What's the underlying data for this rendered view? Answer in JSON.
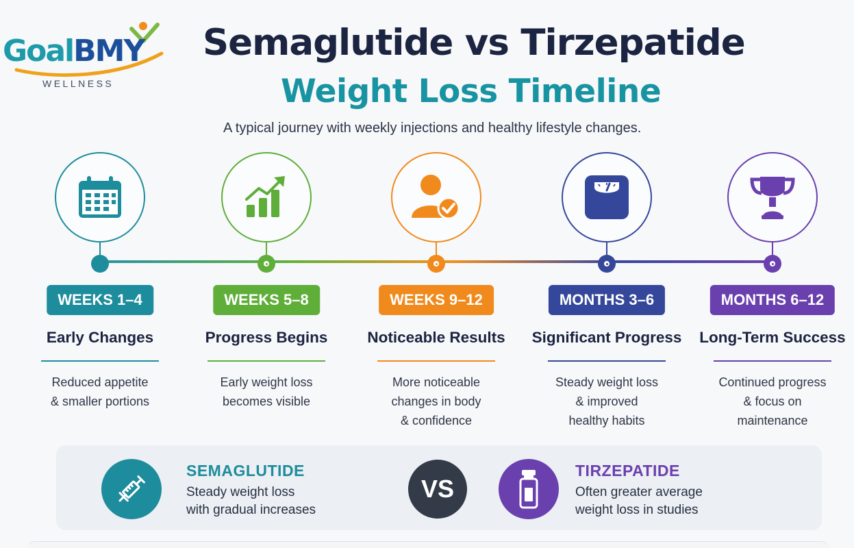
{
  "logo": {
    "word_goal": "Goal",
    "word_bmy": "BMY",
    "subtitle": "WELLNESS",
    "colors": {
      "goal": "#1e9bab",
      "bmy": "#1c4f9a",
      "swoosh": "#f0a11a",
      "figure": "#f28c1e"
    }
  },
  "header": {
    "title": "Semaglutide vs Tirzepatide",
    "subtitle": "Weight Loss Timeline",
    "tagline": "A typical journey with weekly injections and healthy lifestyle changes."
  },
  "timeline": [
    {
      "period": "WEEKS 1–4",
      "title": "Early Changes",
      "description": "Reduced appetite\n& smaller portions",
      "icon": "calendar-icon",
      "color": "#1d8c9c"
    },
    {
      "period": "WEEKS 5–8",
      "title": "Progress Begins",
      "description": "Early weight loss\nbecomes visible",
      "icon": "bar-chart-up-icon",
      "color": "#5fae3a"
    },
    {
      "period": "WEEKS 9–12",
      "title": "Noticeable Results",
      "description": "More noticeable\nchanges in body\n& confidence",
      "icon": "person-check-icon",
      "color": "#f08a1c"
    },
    {
      "period": "MONTHS 3–6",
      "title": "Significant Progress",
      "description": "Steady weight loss\n& improved\nhealthy habits",
      "icon": "scale-icon",
      "color": "#35479a"
    },
    {
      "period": "MONTHS 6–12",
      "title": "Long-Term Success",
      "description": "Continued progress\n& focus on\nmaintenance",
      "icon": "trophy-icon",
      "color": "#6a3fae"
    }
  ],
  "comparison": {
    "left": {
      "name": "SEMAGLUTIDE",
      "description": "Steady weight loss\nwith gradual increases",
      "icon": "syringe-icon",
      "color": "#1d8c9c"
    },
    "vs_label": "VS",
    "right": {
      "name": "TIRZEPATIDE",
      "description": "Often greater average\nweight loss in studies",
      "icon": "vial-icon",
      "color": "#6a3fae"
    }
  }
}
